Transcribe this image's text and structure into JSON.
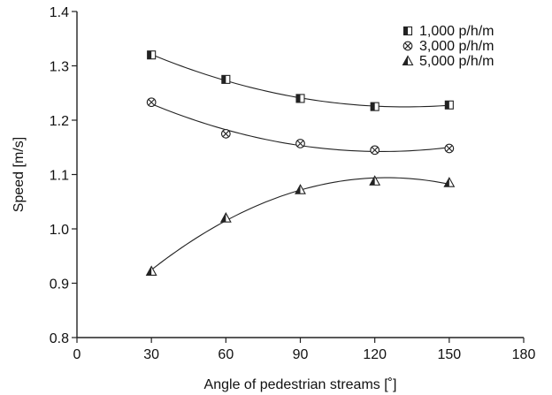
{
  "chart_data": {
    "type": "scatter",
    "title": "",
    "xlabel": "Angle of pedestrian streams [˚]",
    "ylabel": "Speed [m/s]",
    "xlim": [
      0,
      180
    ],
    "ylim": [
      0.8,
      1.4
    ],
    "xticks": [
      "0",
      "30",
      "60",
      "90",
      "120",
      "150",
      "180"
    ],
    "yticks": [
      "0.8",
      "0.9",
      "1.0",
      "1.1",
      "1.2",
      "1.3",
      "1.4"
    ],
    "x": [
      30,
      60,
      90,
      120,
      150
    ],
    "grid": false,
    "legend_position": "top-right",
    "trend_lines": "quadratic fit curves through each series",
    "series": [
      {
        "name": "1,000 p/h/m",
        "marker": "half-filled-square",
        "values": [
          1.32,
          1.275,
          1.24,
          1.225,
          1.228
        ]
      },
      {
        "name": "3,000 p/h/m",
        "marker": "circle-with-x",
        "values": [
          1.233,
          1.175,
          1.157,
          1.145,
          1.148
        ]
      },
      {
        "name": "5,000 p/h/m",
        "marker": "half-filled-triangle",
        "values": [
          0.922,
          1.02,
          1.072,
          1.088,
          1.085
        ]
      }
    ]
  }
}
